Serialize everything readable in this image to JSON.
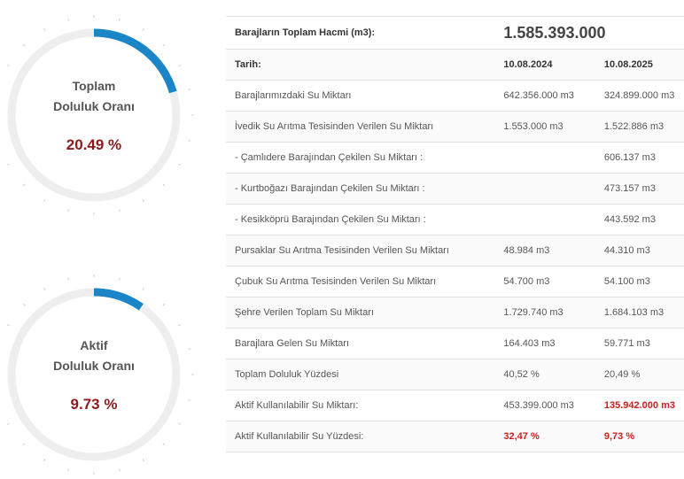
{
  "gauges": [
    {
      "label_line1": "Toplam",
      "label_line2": "Doluluk Oranı",
      "value_text": "20.49 %",
      "percent": 20.49,
      "color": "#1a86c8"
    },
    {
      "label_line1": "Aktif",
      "label_line2": "Doluluk Oranı",
      "value_text": "9.73 %",
      "percent": 9.73,
      "color": "#1a86c8"
    }
  ],
  "table": {
    "total_label": "Barajların Toplam Hacmi (m3):",
    "total_value": "1.585.393.000",
    "header": {
      "label": "Tarih:",
      "date1": "10.08.2024",
      "date2": "10.08.2025"
    },
    "rows": [
      {
        "label": "Barajlarımızdaki Su Miktarı",
        "v1": "642.356.000 m3",
        "v2": "324.899.000 m3"
      },
      {
        "label": "İvedik Su Arıtma Tesisinden Verilen Su Miktarı",
        "v1": "1.553.000 m3",
        "v2": "1.522.886 m3"
      },
      {
        "label": "- Çamlıdere Barajından Çekilen Su Miktarı :",
        "v1": "",
        "v2": "606.137 m3"
      },
      {
        "label": "- Kurtboğazı Barajından Çekilen Su Miktarı :",
        "v1": "",
        "v2": "473.157 m3"
      },
      {
        "label": "- Kesikköprü Barajından Çekilen Su Miktarı :",
        "v1": "",
        "v2": "443.592 m3"
      },
      {
        "label": "Pursaklar Su Arıtma Tesisinden Verilen Su Miktarı",
        "v1": "48.984 m3",
        "v2": "44.310 m3"
      },
      {
        "label": "Çubuk Su Arıtma Tesisinden Verilen Su Miktarı",
        "v1": "54.700 m3",
        "v2": "54.100 m3"
      },
      {
        "label": "Şehre Verilen Toplam Su Miktarı",
        "v1": "1.729.740 m3",
        "v2": "1.684.103 m3"
      },
      {
        "label": "Barajlara Gelen Su Miktarı",
        "v1": "164.403 m3",
        "v2": "59.771 m3"
      },
      {
        "label": "Toplam Doluluk Yüzdesi",
        "v1": "40,52 %",
        "v2": "20,49 %"
      },
      {
        "label": "Aktif Kullanılabilir Su Miktarı:",
        "v1": "453.399.000 m3",
        "v2": "135.942.000 m3"
      },
      {
        "label": "Aktif Kullanılabilir Su Yüzdesi:",
        "v1": "32,47 %",
        "v2": "9,73 %"
      }
    ]
  }
}
